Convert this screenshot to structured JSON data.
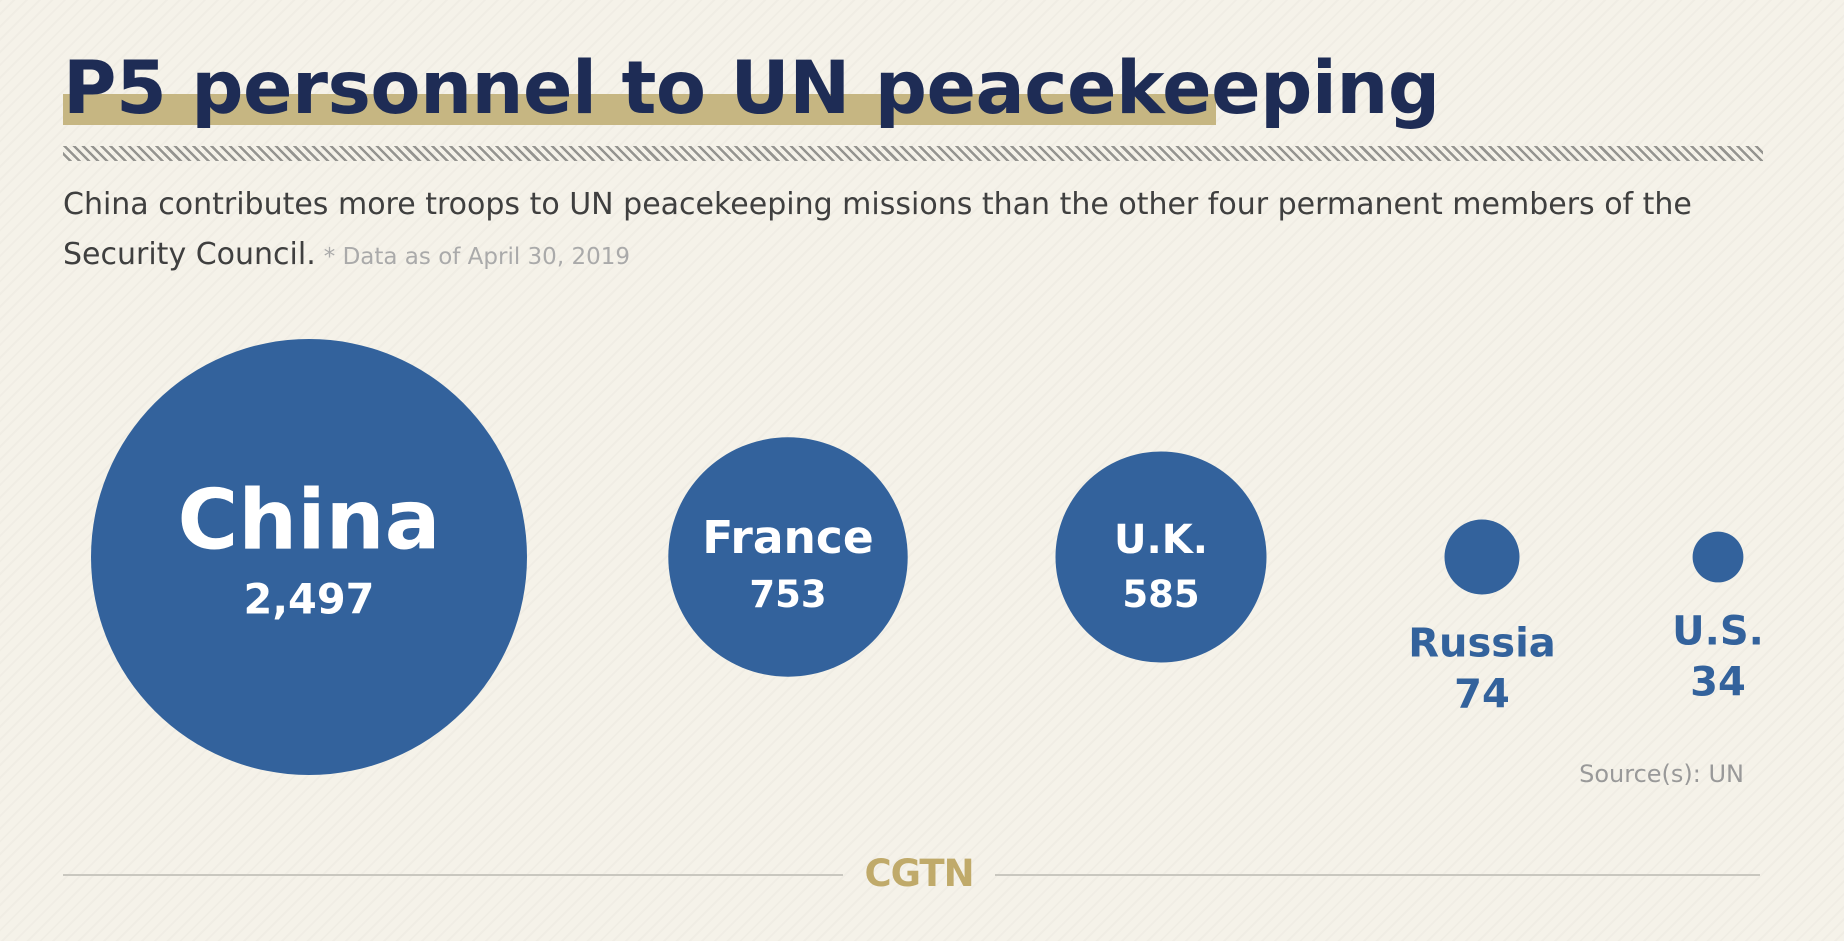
{
  "title": "P5 personnel to UN peacekeeping",
  "subtitle": "China contributes more troops to UN peacekeeping missions than the other four permanent members of the Security Council.",
  "note": "* Data as of April 30, 2019",
  "source": "Source(s): UN",
  "logo": "CGTN",
  "colors": {
    "title": "#1e2c55",
    "highlight": "#c6b682",
    "bubble": "#33629c",
    "bubble_text": "#ffffff",
    "outside_label": "#33629c",
    "subtitle": "#3f3f3f",
    "note": "#aaaaaa",
    "source": "#999999",
    "logo": "#c0aa6a",
    "footer_line": "#c9c7bf"
  },
  "chart_data": {
    "type": "bubble",
    "categories": [
      "China",
      "France",
      "U.K.",
      "Russia",
      "U.S."
    ],
    "values": [
      2497,
      753,
      585,
      74,
      34
    ],
    "value_labels": [
      "2,497",
      "753",
      "585",
      "74",
      "34"
    ],
    "title": "P5 personnel to UN peacekeeping",
    "size_encoding": "area"
  }
}
